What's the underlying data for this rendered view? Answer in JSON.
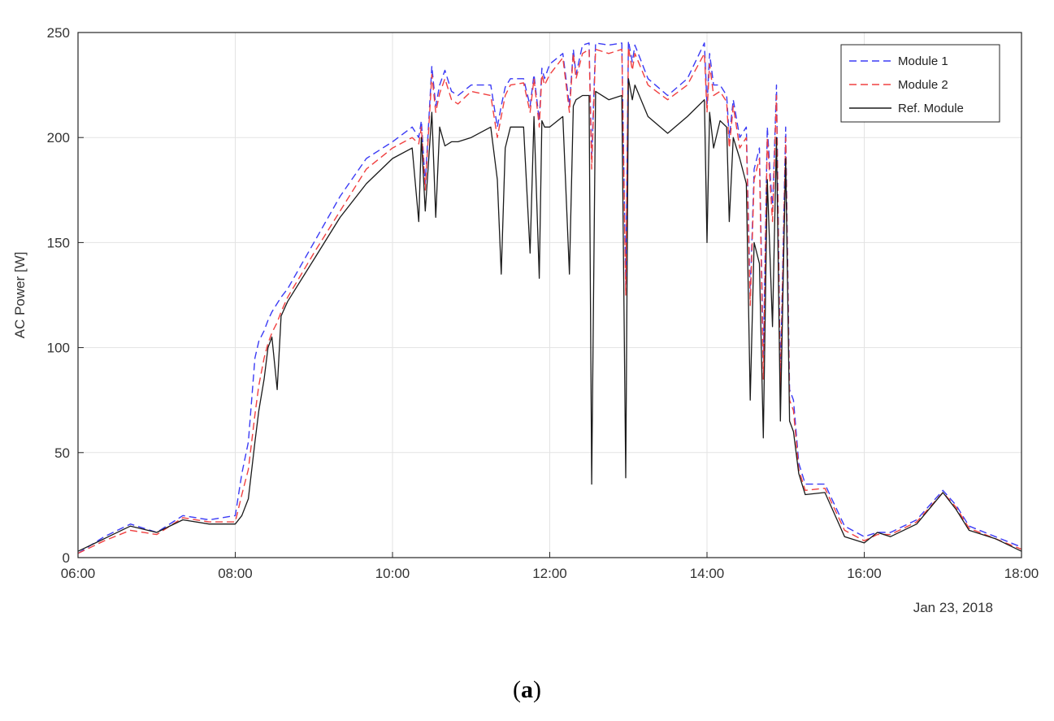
{
  "caption": {
    "open": "(",
    "letter": "a",
    "close": ")"
  },
  "chart_data": {
    "type": "line",
    "title": "",
    "xlabel": "",
    "ylabel": "AC Power [W]",
    "date_label": "Jan 23, 2018",
    "xlim": [
      "06:00",
      "18:00"
    ],
    "ylim": [
      0,
      250
    ],
    "xticks": [
      "06:00",
      "08:00",
      "10:00",
      "12:00",
      "14:00",
      "16:00",
      "18:00"
    ],
    "yticks": [
      "0",
      "50",
      "100",
      "150",
      "200",
      "250"
    ],
    "grid": true,
    "legend_position": "top-right",
    "x": [
      "06:00",
      "06:20",
      "06:40",
      "07:00",
      "07:20",
      "07:40",
      "08:00",
      "08:05",
      "08:10",
      "08:15",
      "08:18",
      "08:22",
      "08:25",
      "08:28",
      "08:32",
      "08:35",
      "08:40",
      "09:00",
      "09:20",
      "09:40",
      "10:00",
      "10:15",
      "10:20",
      "10:22",
      "10:25",
      "10:30",
      "10:33",
      "10:36",
      "10:40",
      "10:45",
      "10:50",
      "11:00",
      "11:15",
      "11:20",
      "11:23",
      "11:26",
      "11:30",
      "11:40",
      "11:45",
      "11:48",
      "11:52",
      "11:54",
      "11:56",
      "12:00",
      "12:10",
      "12:15",
      "12:18",
      "12:20",
      "12:25",
      "12:30",
      "12:32",
      "12:35",
      "12:45",
      "12:55",
      "12:58",
      "13:00",
      "13:03",
      "13:05",
      "13:15",
      "13:30",
      "13:45",
      "13:58",
      "14:00",
      "14:02",
      "14:05",
      "14:10",
      "14:15",
      "14:17",
      "14:20",
      "14:25",
      "14:30",
      "14:33",
      "14:36",
      "14:40",
      "14:43",
      "14:46",
      "14:50",
      "14:53",
      "14:56",
      "15:00",
      "15:03",
      "15:06",
      "15:10",
      "15:15",
      "15:30",
      "15:45",
      "16:00",
      "16:10",
      "16:20",
      "16:40",
      "17:00",
      "17:10",
      "17:20",
      "17:40",
      "18:00"
    ],
    "series": [
      {
        "name": "Module 1",
        "color": "#3b3bf5",
        "dash": "dashed",
        "values": [
          2,
          10,
          16,
          12,
          20,
          18,
          20,
          40,
          55,
          95,
          103,
          108,
          113,
          117,
          121,
          124,
          128,
          150,
          172,
          190,
          198,
          205,
          200,
          208,
          178,
          234,
          215,
          225,
          232,
          222,
          220,
          225,
          225,
          205,
          215,
          224,
          228,
          228,
          215,
          230,
          208,
          233,
          228,
          235,
          240,
          215,
          242,
          230,
          244,
          245,
          190,
          245,
          244,
          245,
          130,
          246,
          236,
          244,
          228,
          220,
          228,
          245,
          215,
          240,
          225,
          225,
          220,
          200,
          218,
          200,
          205,
          125,
          185,
          195,
          95,
          205,
          165,
          225,
          85,
          205,
          80,
          75,
          45,
          35,
          35,
          15,
          10,
          12,
          12,
          18,
          32,
          25,
          15,
          10,
          5
        ]
      },
      {
        "name": "Module 2",
        "color": "#f04040",
        "dash": "dashed",
        "values": [
          2,
          8,
          13,
          11,
          19,
          17,
          17,
          30,
          42,
          68,
          82,
          95,
          102,
          107,
          112,
          117,
          124,
          145,
          165,
          185,
          195,
          200,
          197,
          205,
          175,
          230,
          212,
          221,
          228,
          218,
          216,
          222,
          220,
          200,
          210,
          220,
          225,
          226,
          212,
          228,
          205,
          230,
          225,
          230,
          238,
          212,
          240,
          228,
          240,
          242,
          185,
          242,
          240,
          242,
          125,
          243,
          232,
          240,
          225,
          218,
          225,
          240,
          212,
          235,
          220,
          222,
          217,
          195,
          215,
          195,
          200,
          120,
          180,
          190,
          85,
          200,
          160,
          220,
          80,
          200,
          75,
          70,
          42,
          32,
          33,
          13,
          8,
          11,
          11,
          17,
          31,
          24,
          14,
          9,
          4
        ]
      },
      {
        "name": "Ref. Module",
        "color": "#1a1a1a",
        "dash": "solid",
        "values": [
          3,
          9,
          15,
          12,
          18,
          16,
          16,
          20,
          28,
          55,
          70,
          85,
          100,
          105,
          80,
          115,
          122,
          142,
          162,
          178,
          190,
          195,
          160,
          200,
          165,
          212,
          162,
          205,
          196,
          198,
          198,
          200,
          205,
          180,
          135,
          195,
          205,
          205,
          145,
          210,
          133,
          208,
          205,
          205,
          210,
          135,
          215,
          218,
          220,
          220,
          35,
          222,
          218,
          220,
          38,
          228,
          218,
          225,
          210,
          202,
          210,
          218,
          150,
          212,
          195,
          208,
          205,
          160,
          200,
          190,
          178,
          75,
          150,
          140,
          57,
          180,
          110,
          200,
          65,
          190,
          65,
          60,
          40,
          30,
          31,
          10,
          7,
          12,
          10,
          16,
          31,
          23,
          13,
          9,
          3
        ]
      }
    ]
  }
}
